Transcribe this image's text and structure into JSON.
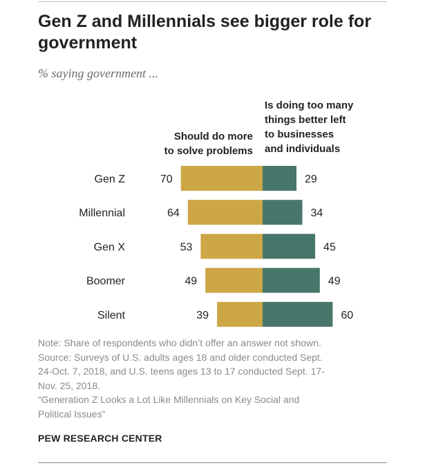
{
  "title": "Gen Z and Millennials see bigger role for government",
  "subtitle": "% saying government ...",
  "headers": {
    "left_line1": "Should do more",
    "left_line2": "to solve problems",
    "right_line1": "Is doing too many",
    "right_line2": "things better left",
    "right_line3": "to businesses",
    "right_line4": "and individuals"
  },
  "colors": {
    "left_bar": "#cda645",
    "right_bar": "#48766a",
    "text": "#222222",
    "notes": "#8a8a8a"
  },
  "chart_data": {
    "type": "bar",
    "orientation": "diverging-horizontal",
    "categories": [
      "Gen Z",
      "Millennial",
      "Gen X",
      "Boomer",
      "Silent"
    ],
    "series": [
      {
        "name": "Should do more to solve problems",
        "values": [
          70,
          64,
          53,
          49,
          39
        ]
      },
      {
        "name": "Is doing too many things better left to businesses and individuals",
        "values": [
          29,
          34,
          45,
          49,
          60
        ]
      }
    ]
  },
  "notes": {
    "line1": "Note: Share of respondents who didn’t offer an answer not shown.",
    "line2": "Source: Surveys of U.S. adults ages 18 and older conducted Sept.",
    "line3": "24-Oct. 7, 2018, and U.S. teens ages 13 to 17 conducted Sept. 17-",
    "line4": "Nov. 25, 2018.",
    "line5": "“Generation Z Looks a Lot Like Millennials on Key Social and",
    "line6": "Political Issues”"
  },
  "credit": "PEW RESEARCH CENTER"
}
